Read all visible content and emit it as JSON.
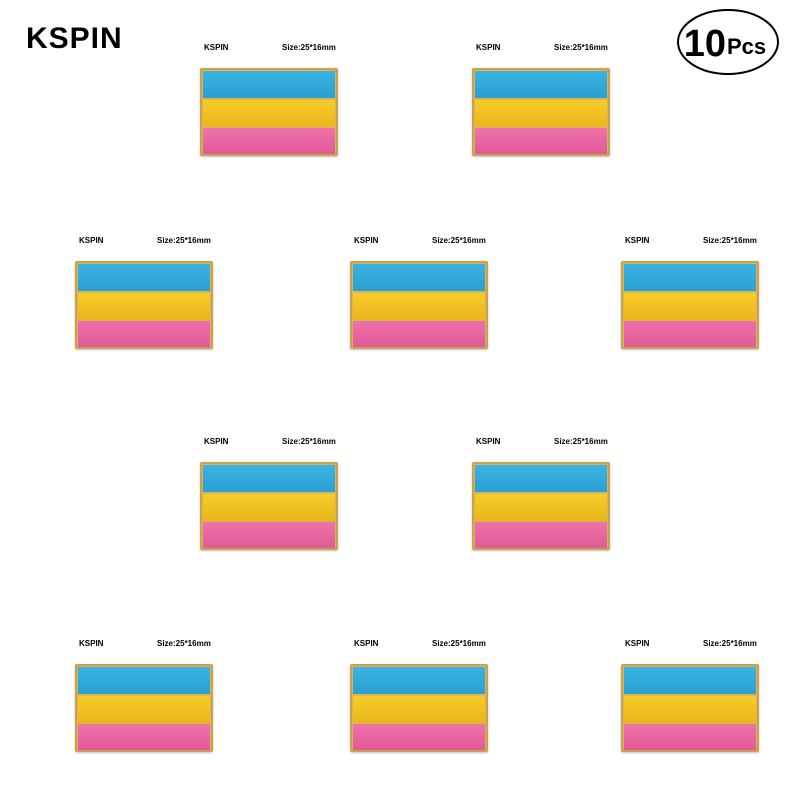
{
  "header": {
    "brand": "KSPIN"
  },
  "badge": {
    "count": "10",
    "unit": "Pcs"
  },
  "pins": [
    {
      "brand": "KSPIN",
      "size": "Size:25*16mm"
    },
    {
      "brand": "KSPIN",
      "size": "Size:25*16mm"
    },
    {
      "brand": "KSPIN",
      "size": "Size:25*16mm"
    },
    {
      "brand": "KSPIN",
      "size": "Size:25*16mm"
    },
    {
      "brand": "KSPIN",
      "size": "Size:25*16mm"
    },
    {
      "brand": "KSPIN",
      "size": "Size:25*16mm"
    },
    {
      "brand": "KSPIN",
      "size": "Size:25*16mm"
    },
    {
      "brand": "KSPIN",
      "size": "Size:25*16mm"
    },
    {
      "brand": "KSPIN",
      "size": "Size:25*16mm"
    },
    {
      "brand": "KSPIN",
      "size": "Size:25*16mm"
    }
  ]
}
